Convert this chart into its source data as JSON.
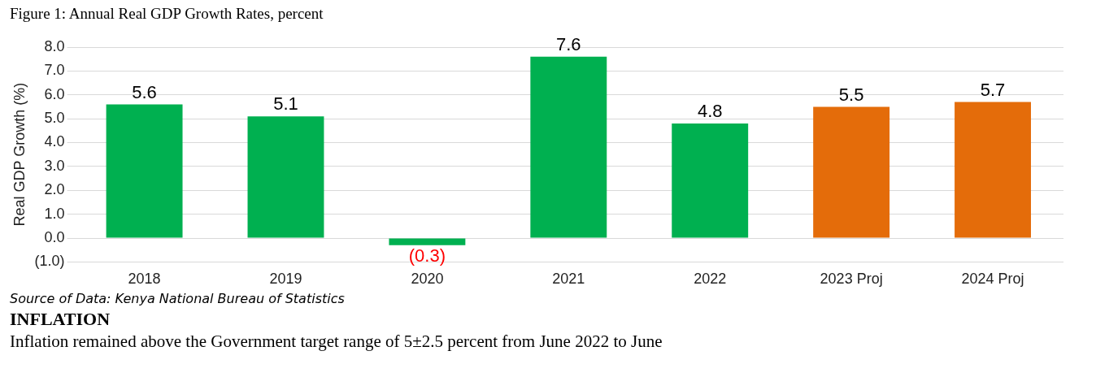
{
  "chart_data": {
    "type": "bar",
    "title": "Figure 1: Annual Real GDP Growth Rates, percent",
    "ylabel": "Real GDP Growth (%)",
    "categories": [
      "2018",
      "2019",
      "2020",
      "2021",
      "2022",
      "2023 Proj",
      "2024 Proj"
    ],
    "values": [
      5.6,
      5.1,
      -0.3,
      7.6,
      4.8,
      5.5,
      5.7
    ],
    "colors": [
      "#00b050",
      "#00b050",
      "#00b050",
      "#00b050",
      "#00b050",
      "#e46c0a",
      "#e46c0a"
    ],
    "value_labels": [
      "5.6",
      "5.1",
      "(0.3)",
      "7.6",
      "4.8",
      "5.5",
      "5.7"
    ],
    "ylim": [
      -1,
      8
    ],
    "yticks": [
      {
        "value": -1,
        "label": "(1.0)"
      },
      {
        "value": 0,
        "label": "0.0"
      },
      {
        "value": 1,
        "label": "1.0"
      },
      {
        "value": 2,
        "label": "2.0"
      },
      {
        "value": 3,
        "label": "3.0"
      },
      {
        "value": 4,
        "label": "4.0"
      },
      {
        "value": 5,
        "label": "5.0"
      },
      {
        "value": 6,
        "label": "6.0"
      },
      {
        "value": 7,
        "label": "7.0"
      },
      {
        "value": 8,
        "label": "8.0"
      }
    ],
    "grid": "y",
    "legend": false,
    "annotations": [
      "Source of Data: Kenya National Bureau of Statistics",
      "INFLATION",
      "Inflation remained above the Government target range of 5±2.5 percent from June 2022 to June"
    ]
  }
}
